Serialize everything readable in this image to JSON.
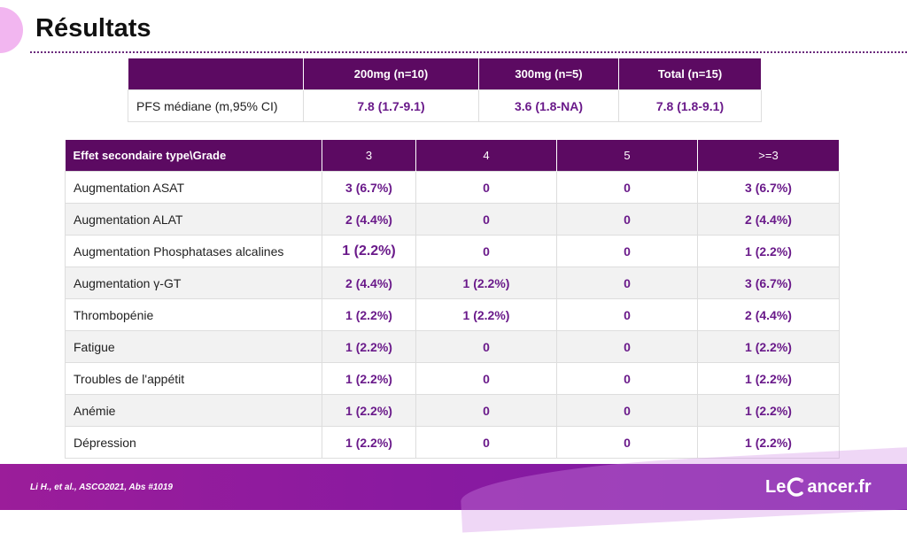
{
  "slide": {
    "title": "Résultats"
  },
  "pfs_table": {
    "headers": [
      "",
      "200mg (n=10)",
      "300mg (n=5)",
      "Total (n=15)"
    ],
    "rows": [
      {
        "label": "PFS médiane  (m,95% CI)",
        "values": [
          "7.8 (1.7-9.1)",
          "3.6 (1.8-NA)",
          "7.8 (1.8-9.1)"
        ]
      }
    ]
  },
  "ae_table": {
    "headers": [
      "Effet secondaire type\\Grade",
      "3",
      "4",
      "5",
      ">=3"
    ],
    "rows": [
      {
        "label": "Augmentation  ASAT",
        "values": [
          "3 (6.7%)",
          "0",
          "0",
          "3 (6.7%)"
        ]
      },
      {
        "label": "Augmentation  ALAT",
        "values": [
          "2 (4.4%)",
          "0",
          "0",
          "2 (4.4%)"
        ]
      },
      {
        "label": "Augmentation  Phosphatases  alcalines",
        "values": [
          "1 (2.2%)",
          "0",
          "0",
          "1 (2.2%)"
        ]
      },
      {
        "label": "Augmentation  γ-GT",
        "values": [
          "2 (4.4%)",
          "1 (2.2%)",
          "0",
          "3 (6.7%)"
        ]
      },
      {
        "label": "Thrombopénie",
        "values": [
          "1 (2.2%)",
          "1 (2.2%)",
          "0",
          "2 (4.4%)"
        ]
      },
      {
        "label": "Fatigue",
        "values": [
          "1 (2.2%)",
          "0",
          "0",
          "1 (2.2%)"
        ]
      },
      {
        "label": "Troubles  de  l'appétit",
        "values": [
          "1 (2.2%)",
          "0",
          "0",
          "1 (2.2%)"
        ]
      },
      {
        "label": "Anémie",
        "values": [
          "1 (2.2%)",
          "0",
          "0",
          "1 (2.2%)"
        ]
      },
      {
        "label": "Dépression",
        "values": [
          "1 (2.2%)",
          "0",
          "0",
          "1 (2.2%)"
        ]
      }
    ]
  },
  "footer": {
    "citation": "Li H., et al.,  ASCO2021,  Abs #1019",
    "logo_left": "Le",
    "logo_right": "ancer.fr"
  },
  "colors": {
    "header_purple": "#5c0a62",
    "value_purple": "#6a1a8a",
    "footer_purple": "#8a1aa0"
  }
}
